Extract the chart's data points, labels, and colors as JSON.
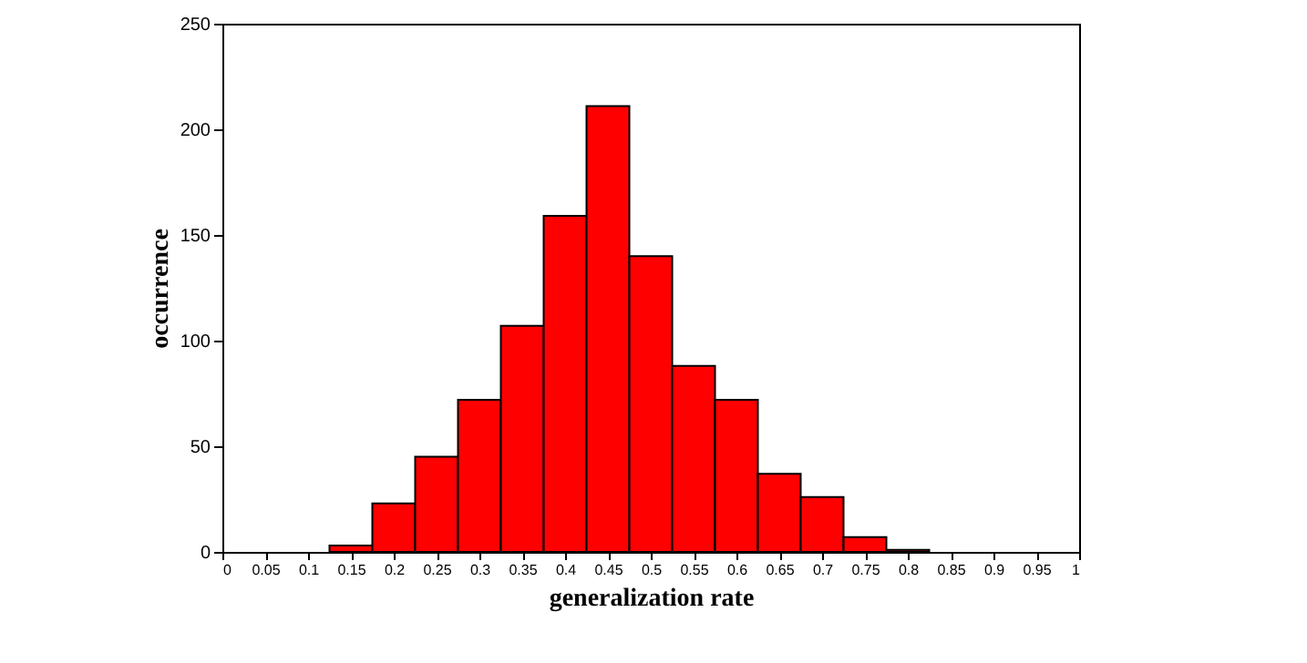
{
  "chart_data": {
    "type": "histogram",
    "xlabel": "generalization rate",
    "ylabel": "occurrence",
    "bins": [
      0.125,
      0.175,
      0.225,
      0.275,
      0.325,
      0.375,
      0.425,
      0.475,
      0.525,
      0.575,
      0.625,
      0.675,
      0.725,
      0.775,
      0.825
    ],
    "values": [
      3,
      23,
      45,
      72,
      107,
      159,
      211,
      140,
      88,
      72,
      37,
      26,
      7,
      1
    ],
    "color": "#ff0000",
    "xlim": [
      0,
      1
    ],
    "xticks": [
      0,
      0.05,
      0.1,
      0.15,
      0.2,
      0.25,
      0.3,
      0.35,
      0.4,
      0.45,
      0.5,
      0.55,
      0.6,
      0.65,
      0.7,
      0.75,
      0.8,
      0.85,
      0.9,
      0.95,
      1
    ],
    "ylim": [
      0,
      250
    ],
    "yticks": [
      0,
      50,
      100,
      150,
      200,
      250
    ],
    "grid": false
  }
}
